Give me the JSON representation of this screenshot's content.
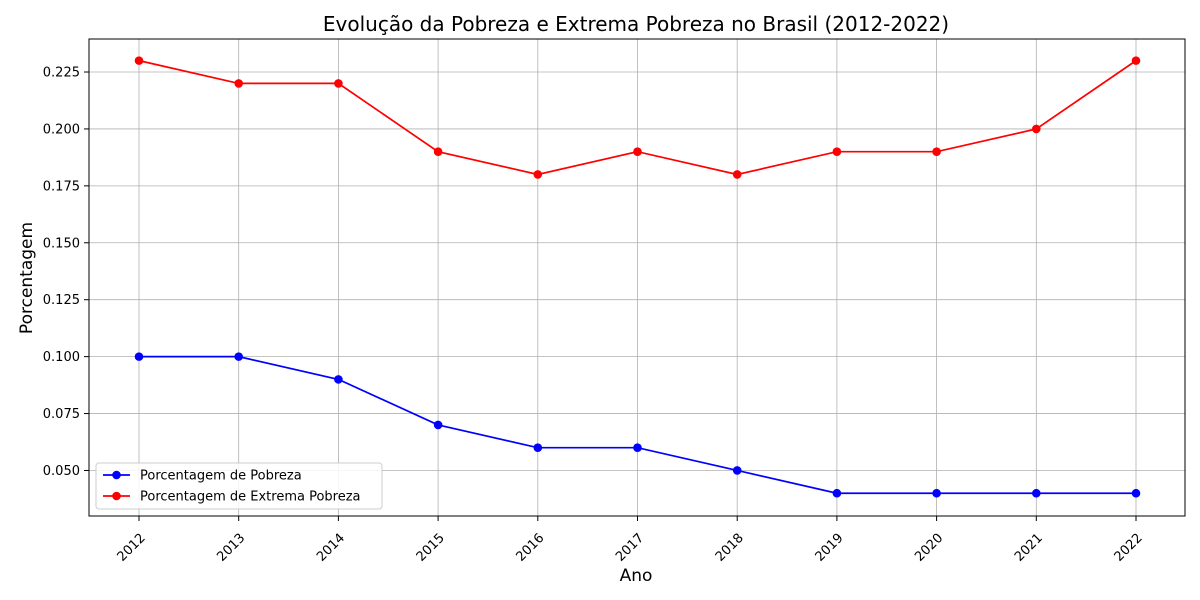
{
  "chart_data": {
    "type": "line",
    "title": "Evolução da Pobreza e Extrema Pobreza no Brasil (2012-2022)",
    "xlabel": "Ano",
    "ylabel": "Porcentagem",
    "x": [
      "2012",
      "2013",
      "2014",
      "2015",
      "2016",
      "2017",
      "2018",
      "2019",
      "2020",
      "2021",
      "2022"
    ],
    "y_ticks": [
      "0.050",
      "0.075",
      "0.100",
      "0.125",
      "0.150",
      "0.175",
      "0.200",
      "0.225"
    ],
    "ylim": [
      0.03,
      0.2395
    ],
    "grid": true,
    "legend_position": "lower left",
    "series": [
      {
        "name": "Porcentagem de Pobreza",
        "color": "#0000ff",
        "marker": "circle",
        "values": [
          0.1,
          0.1,
          0.09,
          0.07,
          0.06,
          0.06,
          0.05,
          0.04,
          0.04,
          0.04,
          0.04
        ]
      },
      {
        "name": "Porcentagem de Extrema Pobreza",
        "color": "#ff0000",
        "marker": "circle",
        "values": [
          0.23,
          0.22,
          0.22,
          0.19,
          0.18,
          0.19,
          0.18,
          0.19,
          0.19,
          0.2,
          0.23
        ]
      }
    ]
  }
}
